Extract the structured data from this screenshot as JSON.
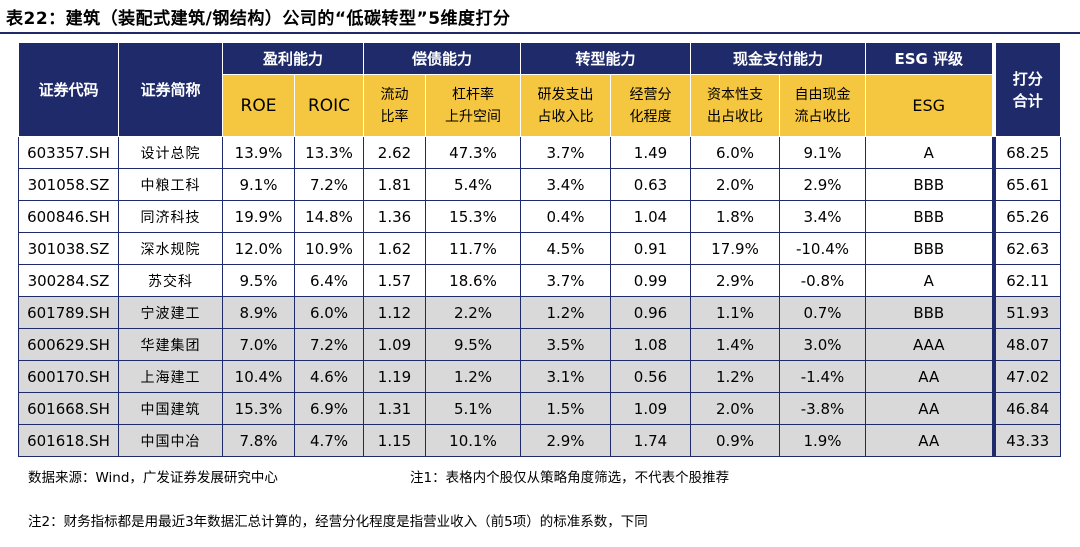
{
  "title": "表22：建筑（装配式建筑/钢结构）公司的“低碳转型”5维度打分",
  "header": {
    "code": "证券代码",
    "name": "证券简称",
    "groups": {
      "profit": "盈利能力",
      "debt": "偿债能力",
      "transform": "转型能力",
      "cash": "现金支付能力",
      "esg": "ESG 评级",
      "score_l1": "打分",
      "score_l2": "合计"
    },
    "sub": {
      "roe": "ROE",
      "roic": "ROIC",
      "current_l1": "流动",
      "current_l2": "比率",
      "leverage_l1": "杠杆率",
      "leverage_l2": "上升空间",
      "rd_l1": "研发支出",
      "rd_l2": "占收入比",
      "div_l1": "经营分",
      "div_l2": "化程度",
      "capex_l1": "资本性支",
      "capex_l2": "出占收比",
      "fcf_l1": "自由现金",
      "fcf_l2": "流占收比",
      "esg": "ESG"
    }
  },
  "rows": [
    [
      "603357.SH",
      "设计总院",
      "13.9%",
      "13.3%",
      "2.62",
      "47.3%",
      "3.7%",
      "1.49",
      "6.0%",
      "9.1%",
      "A",
      "68.25"
    ],
    [
      "301058.SZ",
      "中粮工科",
      "9.1%",
      "7.2%",
      "1.81",
      "5.4%",
      "3.4%",
      "0.63",
      "2.0%",
      "2.9%",
      "BBB",
      "65.61"
    ],
    [
      "600846.SH",
      "同济科技",
      "19.9%",
      "14.8%",
      "1.36",
      "15.3%",
      "0.4%",
      "1.04",
      "1.8%",
      "3.4%",
      "BBB",
      "65.26"
    ],
    [
      "301038.SZ",
      "深水规院",
      "12.0%",
      "10.9%",
      "1.62",
      "11.7%",
      "4.5%",
      "0.91",
      "17.9%",
      "-10.4%",
      "BBB",
      "62.63"
    ],
    [
      "300284.SZ",
      "苏交科",
      "9.5%",
      "6.4%",
      "1.57",
      "18.6%",
      "3.7%",
      "0.99",
      "2.9%",
      "-0.8%",
      "A",
      "62.11"
    ],
    [
      "601789.SH",
      "宁波建工",
      "8.9%",
      "6.0%",
      "1.12",
      "2.2%",
      "1.2%",
      "0.96",
      "1.1%",
      "0.7%",
      "BBB",
      "51.93"
    ],
    [
      "600629.SH",
      "华建集团",
      "7.0%",
      "7.2%",
      "1.09",
      "9.5%",
      "3.5%",
      "1.08",
      "1.4%",
      "3.0%",
      "AAA",
      "48.07"
    ],
    [
      "600170.SH",
      "上海建工",
      "10.4%",
      "4.6%",
      "1.19",
      "1.2%",
      "3.1%",
      "0.56",
      "1.2%",
      "-1.4%",
      "AA",
      "47.02"
    ],
    [
      "601668.SH",
      "中国建筑",
      "15.3%",
      "6.9%",
      "1.31",
      "5.1%",
      "1.5%",
      "1.09",
      "2.0%",
      "-3.8%",
      "AA",
      "46.84"
    ],
    [
      "601618.SH",
      "中国中冶",
      "7.8%",
      "4.7%",
      "1.15",
      "10.1%",
      "2.9%",
      "1.74",
      "0.9%",
      "1.9%",
      "AA",
      "43.33"
    ]
  ],
  "row_shading": [
    "white",
    "white",
    "white",
    "white",
    "white",
    "gray",
    "gray",
    "gray",
    "gray",
    "gray"
  ],
  "notes": {
    "source": "数据来源：Wind，广发证券发展研究中心",
    "note1": "注1：表格内个股仅从策略角度筛选，不代表个股推荐",
    "note2": "注2：财务指标都是用最近3年数据汇总计算的，经营分化程度是指营业收入（前5项）的标准系数，下同"
  },
  "colors": {
    "header_dark": "#1f2a6b",
    "header_gold": "#f5c63f",
    "row_gray": "#d9d9d9"
  }
}
